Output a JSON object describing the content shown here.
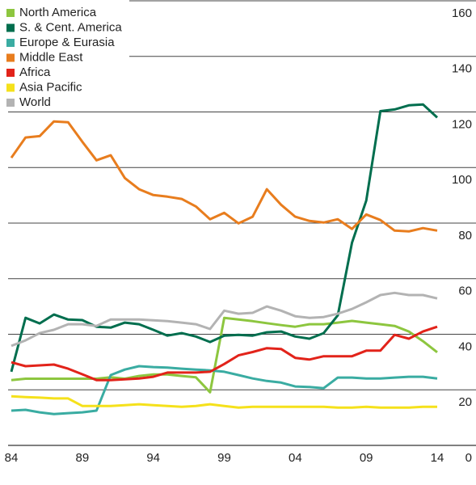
{
  "chart_data": {
    "type": "line",
    "categories": [
      "84",
      null,
      null,
      null,
      null,
      "89",
      null,
      null,
      null,
      null,
      "94",
      null,
      null,
      null,
      null,
      "99",
      null,
      null,
      null,
      null,
      "04",
      null,
      null,
      null,
      null,
      "09",
      null,
      null,
      null,
      null,
      "14"
    ],
    "ylim": [
      0,
      160
    ],
    "yticks": [
      0,
      20,
      40,
      60,
      80,
      100,
      120,
      140,
      160
    ],
    "grid": true,
    "y_axis_side": "right",
    "legend": "top-left",
    "series": [
      {
        "name": "North America",
        "color": "#8dc63f",
        "values": [
          23.5,
          24,
          24,
          24,
          24,
          24,
          24,
          24.5,
          24,
          25,
          25.5,
          25.5,
          25,
          24.5,
          19.1,
          45.9,
          45.3,
          44.7,
          44,
          43.3,
          42.7,
          43.6,
          43.6,
          44.2,
          44.8,
          44.2,
          43.6,
          43,
          41,
          37.5,
          33.5
        ]
      },
      {
        "name": "S. & Cent. America",
        "color": "#006e4e",
        "values": [
          26.5,
          45.9,
          43.9,
          47.1,
          45.3,
          45.1,
          42.7,
          42.4,
          44.2,
          43.6,
          41.6,
          39.5,
          40.4,
          39.2,
          37.2,
          39.5,
          39.8,
          39.5,
          40.7,
          41,
          39.2,
          38.4,
          40.4,
          46.8,
          73,
          88.1,
          120.3,
          120.9,
          122.4,
          122.7,
          118
        ]
      },
      {
        "name": "Europe & Eurasia",
        "color": "#3aaca2",
        "values": [
          12.5,
          12.8,
          11.9,
          11.3,
          11.6,
          11.9,
          12.5,
          25.3,
          27.3,
          28.5,
          28.2,
          28,
          27.6,
          27.3,
          27,
          26.5,
          25.3,
          24.1,
          23.2,
          22.6,
          21.2,
          21,
          20.6,
          24.4,
          24.4,
          24.1,
          24.1,
          24.4,
          24.7,
          24.7,
          24.1
        ]
      },
      {
        "name": "Middle East",
        "color": "#e87d1e",
        "values": [
          103.5,
          110.8,
          111.3,
          116.6,
          116.3,
          109.3,
          102.6,
          104.4,
          96.2,
          92.2,
          90.1,
          89.5,
          88.7,
          86,
          81.4,
          83.7,
          79.9,
          82.3,
          92.2,
          86.6,
          82.3,
          80.8,
          80.2,
          81.4,
          77.9,
          83.1,
          81.1,
          77.3,
          77,
          78.2,
          77.3
        ]
      },
      {
        "name": "Africa",
        "color": "#e2231a",
        "values": [
          29.9,
          28.5,
          28.8,
          29.1,
          27.6,
          25.6,
          23.5,
          23.5,
          23.8,
          24.1,
          24.7,
          26.2,
          26.2,
          26.2,
          26.5,
          29.3,
          32.4,
          33.6,
          35,
          34.7,
          31.5,
          30.9,
          32.1,
          32.1,
          32.1,
          34.1,
          34.1,
          39.8,
          38.4,
          41,
          42.7
        ]
      },
      {
        "name": "Asia Pacific",
        "color": "#f5e11b",
        "values": [
          17.7,
          17.4,
          17.2,
          16.9,
          16.9,
          14.2,
          14.2,
          14.2,
          14.5,
          14.8,
          14.5,
          14.2,
          13.9,
          14.2,
          14.8,
          14.2,
          13.6,
          13.9,
          13.9,
          13.9,
          13.9,
          13.9,
          13.9,
          13.6,
          13.6,
          13.9,
          13.6,
          13.6,
          13.6,
          13.9,
          13.9
        ]
      },
      {
        "name": "World",
        "color": "#b3b3b3",
        "values": [
          35.8,
          37.8,
          40.4,
          41.6,
          43.6,
          43.6,
          43,
          45.3,
          45.3,
          45.3,
          45,
          44.7,
          44.2,
          43.6,
          41.9,
          48.5,
          47.4,
          47.7,
          50,
          48.5,
          46.5,
          45.9,
          46.2,
          47.4,
          49.1,
          51.5,
          54.1,
          54.9,
          54.1,
          54.1,
          52.9
        ]
      }
    ]
  }
}
